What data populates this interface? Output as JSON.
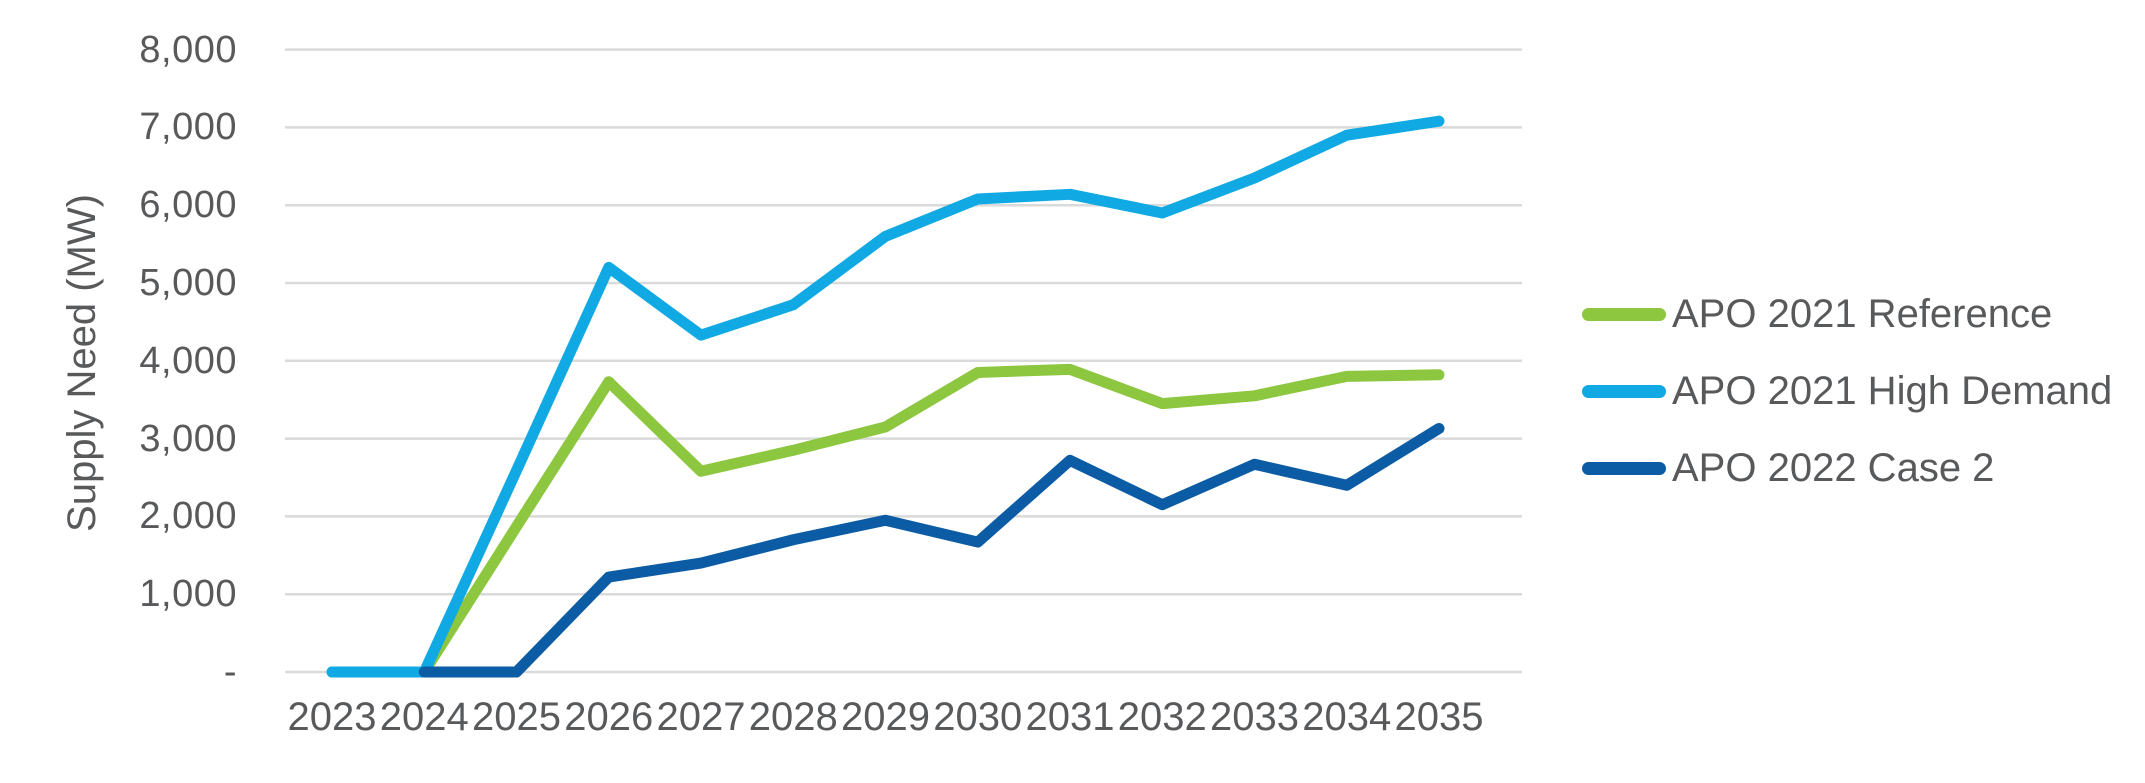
{
  "y_axis": {
    "title": "Supply Need (MW)",
    "tick_labels": [
      "8,000",
      "7,000",
      "6,000",
      "5,000",
      "4,000",
      "3,000",
      "2,000",
      "1,000",
      "-"
    ],
    "tick_values": [
      8000,
      7000,
      6000,
      5000,
      4000,
      3000,
      2000,
      1000,
      0
    ]
  },
  "x_axis": {
    "tick_labels": [
      "2023",
      "2024",
      "2025",
      "2026",
      "2027",
      "2028",
      "2029",
      "2030",
      "2031",
      "2032",
      "2033",
      "2034",
      "2035"
    ]
  },
  "colors": {
    "reference_green": "#8DC63F",
    "high_demand_cyan": "#11A9E4",
    "case2_navy": "#0B5CA4",
    "gridline_gray": "#DADADA",
    "text_gray": "#58595B"
  },
  "chart_data": {
    "type": "line",
    "title": "",
    "xlabel": "",
    "ylabel": "Supply Need (MW)",
    "ylim": [
      0,
      8000
    ],
    "grid": "horizontal",
    "legend_position": "right",
    "x": [
      2023,
      2024,
      2025,
      2026,
      2027,
      2028,
      2029,
      2030,
      2031,
      2032,
      2033,
      2034,
      2035
    ],
    "series": [
      {
        "name": "APO 2021 Reference",
        "color": "#8DC63F",
        "values": [
          0,
          0,
          1870,
          3730,
          2580,
          2850,
          3150,
          3850,
          3890,
          3450,
          3550,
          3800,
          3820
        ]
      },
      {
        "name": "APO 2021 High Demand",
        "color": "#11A9E4",
        "values": [
          0,
          0,
          2590,
          5200,
          4330,
          4720,
          5600,
          6080,
          6140,
          5900,
          6350,
          6900,
          7080
        ]
      },
      {
        "name": "APO 2022 Case 2",
        "color": "#0B5CA4",
        "values": [
          null,
          0,
          0,
          1220,
          1400,
          1700,
          1950,
          1670,
          2720,
          2150,
          2670,
          2400,
          3130
        ]
      }
    ]
  }
}
